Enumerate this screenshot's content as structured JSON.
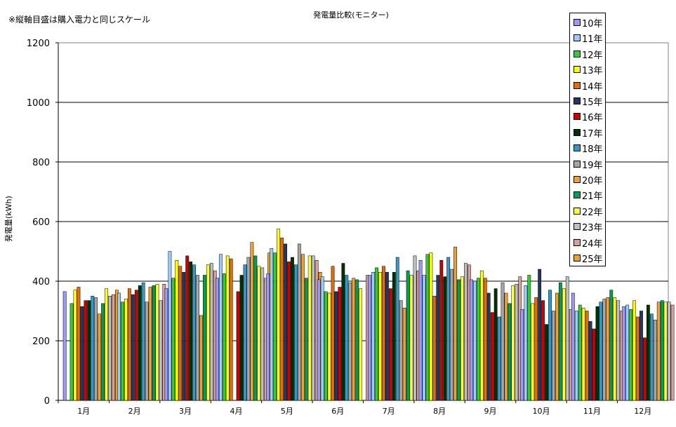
{
  "note": "※縦軸目盛は購入電力と同じスケール",
  "chart_data": {
    "type": "bar",
    "title": "発電量比較(モニター)",
    "xlabel": "",
    "ylabel": "発電量(kWh)",
    "ylim": [
      0,
      1200
    ],
    "yticks": [
      0,
      200,
      400,
      600,
      800,
      1000,
      1200
    ],
    "grid": true,
    "legend_position": "top-right",
    "categories": [
      "1月",
      "2月",
      "3月",
      "4月",
      "5月",
      "6月",
      "7月",
      "8月",
      "9月",
      "10月",
      "11月",
      "12月"
    ],
    "series": [
      {
        "name": "10年",
        "color": "#9999ff",
        "values": [
          365,
          null,
          375,
          410,
          425,
          405,
          420,
          470,
          405,
          305,
          360,
          315
        ]
      },
      {
        "name": "11年",
        "color": "#99ccff",
        "values": [
          null,
          360,
          500,
          490,
          510,
          415,
          430,
          420,
          400,
          385,
          300,
          320
        ]
      },
      {
        "name": "12年",
        "color": "#33cc33",
        "values": [
          325,
          330,
          410,
          425,
          495,
          365,
          445,
          490,
          410,
          420,
          320,
          305
        ]
      },
      {
        "name": "13年",
        "color": "#ffff00",
        "values": [
          370,
          340,
          470,
          485,
          575,
          360,
          430,
          495,
          435,
          325,
          310,
          335
        ]
      },
      {
        "name": "14年",
        "color": "#e46c0a",
        "values": [
          380,
          375,
          450,
          475,
          545,
          450,
          450,
          350,
          410,
          345,
          300,
          280
        ]
      },
      {
        "name": "15年",
        "color": "#1f3864",
        "values": [
          315,
          355,
          430,
          null,
          525,
          365,
          430,
          420,
          360,
          440,
          265,
          300
        ]
      },
      {
        "name": "16年",
        "color": "#cc0000",
        "values": [
          335,
          370,
          485,
          365,
          465,
          380,
          375,
          470,
          295,
          335,
          240,
          210
        ]
      },
      {
        "name": "17年",
        "color": "#003300",
        "values": [
          335,
          385,
          465,
          420,
          480,
          460,
          430,
          415,
          375,
          255,
          315,
          320
        ]
      },
      {
        "name": "18年",
        "color": "#3399cc",
        "values": [
          350,
          395,
          455,
          455,
          455,
          420,
          480,
          480,
          280,
          370,
          330,
          290
        ]
      },
      {
        "name": "19年",
        "color": "#a6a6a6",
        "values": [
          345,
          330,
          420,
          480,
          525,
          395,
          335,
          440,
          395,
          300,
          340,
          270
        ]
      },
      {
        "name": "20年",
        "color": "#f0a030",
        "values": [
          290,
          380,
          285,
          530,
          490,
          410,
          310,
          515,
          360,
          360,
          345,
          330
        ]
      },
      {
        "name": "21年",
        "color": "#00a050",
        "values": [
          325,
          385,
          420,
          485,
          410,
          405,
          435,
          405,
          325,
          395,
          370,
          335
        ]
      },
      {
        "name": "22年",
        "color": "#ffff33",
        "values": [
          375,
          390,
          455,
          450,
          485,
          375,
          420,
          415,
          385,
          375,
          345,
          330
        ]
      },
      {
        "name": "23年",
        "color": "#bfbfbf",
        "values": [
          350,
          335,
          460,
          445,
          485,
          null,
          485,
          460,
          390,
          415,
          335,
          330
        ]
      },
      {
        "name": "24年",
        "color": "#d9a09a",
        "values": [
          355,
          390,
          435,
          410,
          470,
          420,
          435,
          455,
          415,
          305,
          300,
          320
        ]
      },
      {
        "name": "25年",
        "color": "#f0a020",
        "values": [
          370,
          null,
          410,
          495,
          430,
          null,
          null,
          null,
          null,
          null,
          null,
          null
        ]
      }
    ]
  }
}
